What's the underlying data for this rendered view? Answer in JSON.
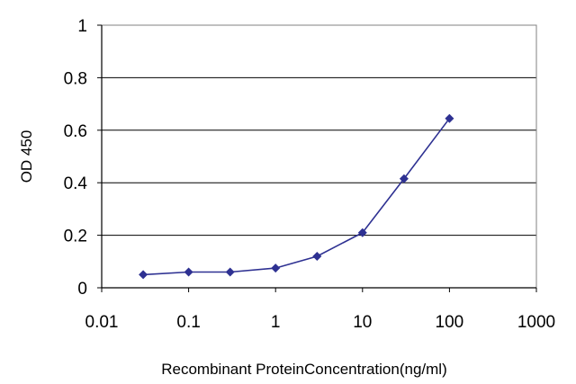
{
  "chart_data": {
    "type": "line",
    "title": "",
    "xlabel": "Recombinant ProteinConcentration(ng/ml)",
    "ylabel": "OD 450",
    "xscale": "log",
    "xlim": [
      0.01,
      1000
    ],
    "ylim": [
      0,
      1
    ],
    "xticks": [
      "0.01",
      "0.1",
      "1",
      "10",
      "100",
      "1000"
    ],
    "yticks": [
      "0",
      "0.2",
      "0.4",
      "0.6",
      "0.8",
      "1"
    ],
    "grid": "horizontal",
    "legend": "none",
    "series": [
      {
        "x": [
          0.03,
          0.1,
          0.3,
          1,
          3,
          10,
          30,
          100
        ],
        "y": [
          0.05,
          0.06,
          0.06,
          0.075,
          0.12,
          0.21,
          0.415,
          0.645
        ],
        "color": "#2e3192",
        "marker": "diamond"
      }
    ]
  }
}
